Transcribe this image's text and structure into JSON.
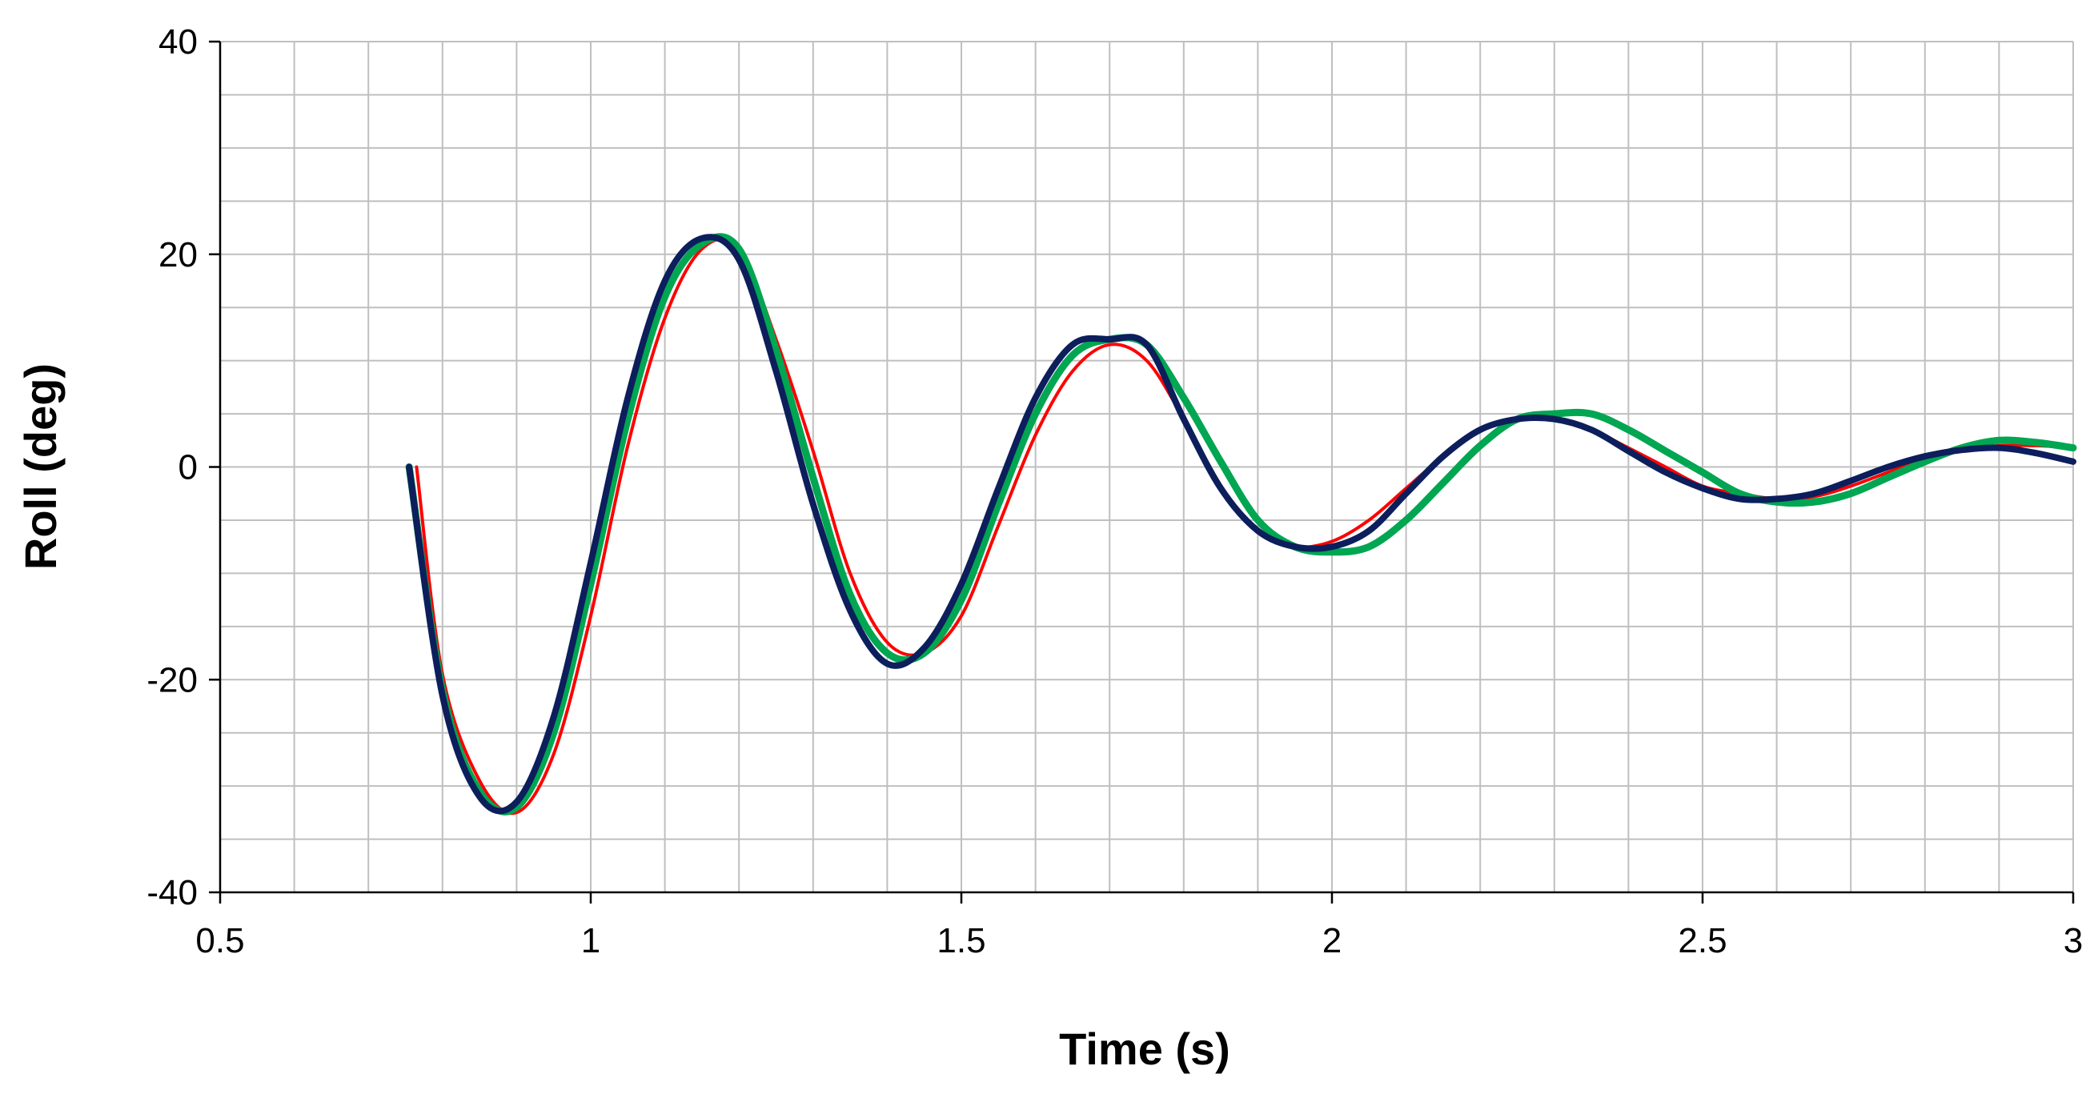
{
  "chart_data": {
    "type": "line",
    "title": "",
    "xlabel": "Time (s)",
    "ylabel": "Roll (deg)",
    "xlim": [
      0.5,
      3
    ],
    "ylim": [
      -40,
      40
    ],
    "x_ticks": [
      "0.5",
      "1",
      "1.5",
      "2",
      "2.5",
      "3"
    ],
    "y_ticks": [
      "-40",
      "-20",
      "0",
      "20",
      "40"
    ],
    "grid": {
      "major_x_step": 0.5,
      "minor_x_step": 0.1,
      "major_y_step": 20,
      "minor_y_step": 5
    },
    "legend": "none",
    "series": [
      {
        "color": "#ff0000",
        "x": [
          0.765,
          0.8,
          0.85,
          0.9,
          0.95,
          1.0,
          1.05,
          1.1,
          1.15,
          1.2,
          1.25,
          1.3,
          1.35,
          1.4,
          1.45,
          1.5,
          1.55,
          1.6,
          1.65,
          1.7,
          1.75,
          1.8,
          1.85,
          1.9,
          1.95,
          2.0,
          2.05,
          2.1,
          2.15,
          2.2,
          2.25,
          2.3,
          2.35,
          2.4,
          2.45,
          2.5,
          2.55,
          2.6,
          2.65,
          2.7,
          2.75,
          2.8,
          2.85,
          2.9,
          2.95,
          3.0
        ],
        "y": [
          0,
          -19.5,
          -29.5,
          -32.5,
          -27,
          -14,
          2,
          14,
          20.5,
          20.5,
          12,
          1.5,
          -10,
          -16.5,
          -17.5,
          -14,
          -5.5,
          3,
          9,
          11.5,
          10,
          4.5,
          -2,
          -6,
          -7.5,
          -7,
          -5,
          -2,
          1,
          3.5,
          4.5,
          4.5,
          3.5,
          1.8,
          0,
          -1.8,
          -2.5,
          -3,
          -2.8,
          -1.8,
          -0.5,
          0.8,
          1.6,
          2,
          2,
          1.8
        ]
      },
      {
        "color": "#00a651",
        "x": [
          0.755,
          0.8,
          0.85,
          0.9,
          0.95,
          1.0,
          1.05,
          1.1,
          1.15,
          1.2,
          1.25,
          1.3,
          1.35,
          1.4,
          1.45,
          1.5,
          1.55,
          1.6,
          1.65,
          1.7,
          1.75,
          1.8,
          1.85,
          1.9,
          1.95,
          2.0,
          2.05,
          2.1,
          2.15,
          2.2,
          2.25,
          2.3,
          2.35,
          2.4,
          2.45,
          2.5,
          2.55,
          2.6,
          2.65,
          2.7,
          2.75,
          2.8,
          2.85,
          2.9,
          2.95,
          3.0
        ],
        "y": [
          0,
          -21,
          -30.5,
          -32,
          -25,
          -11,
          4.5,
          16,
          21,
          20.5,
          11,
          -1,
          -12,
          -17.5,
          -17.5,
          -12.5,
          -3.5,
          5,
          10.5,
          12,
          11.5,
          6.5,
          0.5,
          -5,
          -7.5,
          -8,
          -7.5,
          -5,
          -1.5,
          2,
          4.5,
          5,
          5,
          3.5,
          1.5,
          -0.5,
          -2.5,
          -3.3,
          -3.3,
          -2.5,
          -1,
          0.5,
          1.8,
          2.5,
          2.3,
          1.8
        ]
      },
      {
        "color": "#0d1e5c",
        "x": [
          0.755,
          0.8,
          0.85,
          0.9,
          0.95,
          1.0,
          1.05,
          1.1,
          1.15,
          1.2,
          1.25,
          1.3,
          1.35,
          1.4,
          1.45,
          1.5,
          1.55,
          1.6,
          1.65,
          1.7,
          1.75,
          1.8,
          1.85,
          1.9,
          1.95,
          2.0,
          2.05,
          2.1,
          2.15,
          2.2,
          2.25,
          2.3,
          2.35,
          2.4,
          2.45,
          2.5,
          2.55,
          2.6,
          2.65,
          2.7,
          2.75,
          2.8,
          2.85,
          2.9,
          2.95,
          3.0
        ],
        "y": [
          0,
          -21.5,
          -31,
          -31.5,
          -23.5,
          -9,
          6.5,
          17.5,
          21.5,
          19.5,
          9,
          -3.5,
          -13.5,
          -18.5,
          -17,
          -11,
          -2,
          6.5,
          11.5,
          12,
          11.5,
          4.5,
          -2,
          -6,
          -7.5,
          -7.5,
          -6,
          -2.5,
          1,
          3.5,
          4.5,
          4.5,
          3.5,
          1.5,
          -0.5,
          -2,
          -3,
          -3,
          -2.5,
          -1.3,
          0,
          1,
          1.6,
          1.8,
          1.3,
          0.5
        ]
      }
    ]
  }
}
